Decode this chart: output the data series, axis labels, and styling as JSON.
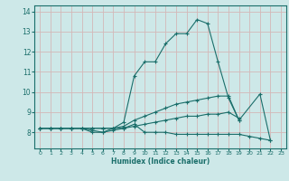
{
  "xlabel": "Humidex (Indice chaleur)",
  "background_color": "#cde8e8",
  "grid_color": "#d4b8b8",
  "line_color": "#1a6e6a",
  "spine_color": "#1a6e6a",
  "tick_color": "#1a6e6a",
  "xlim": [
    -0.5,
    23.5
  ],
  "ylim": [
    7.2,
    14.3
  ],
  "xticks": [
    0,
    1,
    2,
    3,
    4,
    5,
    6,
    7,
    8,
    9,
    10,
    11,
    12,
    13,
    14,
    15,
    16,
    17,
    18,
    19,
    20,
    21,
    22,
    23
  ],
  "yticks": [
    8,
    9,
    10,
    11,
    12,
    13,
    14
  ],
  "curves": [
    {
      "x": [
        0,
        1,
        2,
        3,
        4,
        5,
        6,
        7,
        8,
        9,
        10,
        11,
        12,
        13,
        14,
        15,
        16,
        17,
        18,
        19,
        21,
        22
      ],
      "y": [
        8.2,
        8.2,
        8.2,
        8.2,
        8.2,
        8.0,
        8.0,
        8.2,
        8.5,
        10.8,
        11.5,
        11.5,
        12.4,
        12.9,
        12.9,
        13.6,
        13.4,
        11.5,
        9.7,
        8.6,
        9.9,
        7.6
      ]
    },
    {
      "x": [
        0,
        1,
        2,
        3,
        4,
        5,
        6,
        7,
        8,
        9,
        10,
        11,
        12,
        13,
        14,
        15,
        16,
        17,
        18,
        19
      ],
      "y": [
        8.2,
        8.2,
        8.2,
        8.2,
        8.2,
        8.2,
        8.2,
        8.2,
        8.3,
        8.6,
        8.8,
        9.0,
        9.2,
        9.4,
        9.5,
        9.6,
        9.7,
        9.8,
        9.8,
        8.6
      ]
    },
    {
      "x": [
        0,
        1,
        2,
        3,
        4,
        5,
        6,
        7,
        8,
        9,
        10,
        11,
        12,
        13,
        14,
        15,
        16,
        17,
        18,
        19
      ],
      "y": [
        8.2,
        8.2,
        8.2,
        8.2,
        8.2,
        8.2,
        8.2,
        8.2,
        8.2,
        8.3,
        8.4,
        8.5,
        8.6,
        8.7,
        8.8,
        8.8,
        8.9,
        8.9,
        9.0,
        8.7
      ]
    },
    {
      "x": [
        0,
        1,
        2,
        3,
        4,
        5,
        6,
        7,
        8,
        9,
        10,
        11,
        12,
        13,
        14,
        15,
        16,
        17,
        18,
        19,
        20,
        21,
        22
      ],
      "y": [
        8.2,
        8.2,
        8.2,
        8.2,
        8.2,
        8.1,
        8.0,
        8.1,
        8.2,
        8.4,
        8.0,
        8.0,
        8.0,
        7.9,
        7.9,
        7.9,
        7.9,
        7.9,
        7.9,
        7.9,
        7.8,
        7.7,
        7.6
      ]
    }
  ]
}
